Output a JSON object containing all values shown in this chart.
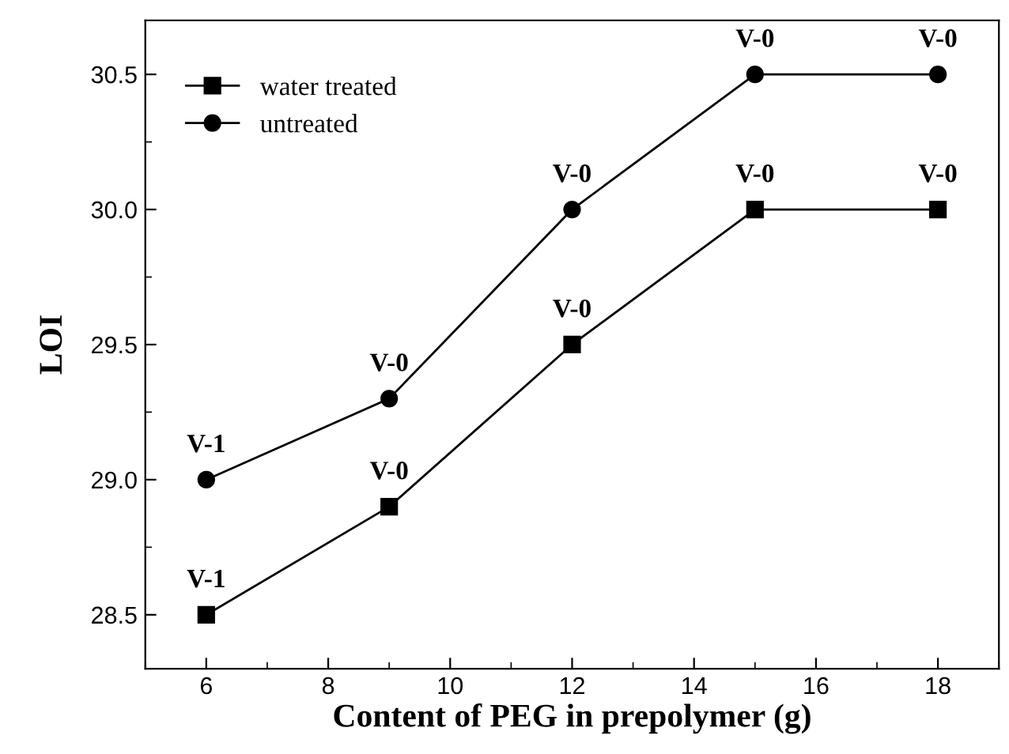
{
  "chart_data": {
    "type": "line",
    "xlabel": "Content of PEG in prepolymer (g)",
    "ylabel": "LOI",
    "x": [
      6,
      9,
      12,
      15,
      18
    ],
    "series": [
      {
        "name": "water treated",
        "color": "#000000",
        "marker": "square",
        "values": [
          28.5,
          28.9,
          29.5,
          30.0,
          30.0
        ],
        "value_labels": [
          "V-1",
          "V-0",
          "V-0",
          "V-0",
          "V-0"
        ]
      },
      {
        "name": "untreated",
        "color": "#000000",
        "marker": "circle",
        "values": [
          29.0,
          29.3,
          30.0,
          30.5,
          30.5
        ],
        "value_labels": [
          "V-1",
          "V-0",
          "V-0",
          "V-0",
          "V-0"
        ]
      }
    ],
    "xlim": [
      5,
      19
    ],
    "xticks": [
      6,
      8,
      10,
      12,
      14,
      16,
      18
    ],
    "ylim": [
      28.3,
      30.7
    ],
    "yticks": [
      {
        "value": 28.5,
        "label": "28.5"
      },
      {
        "value": 29.0,
        "label": "29.0"
      },
      {
        "value": 29.5,
        "label": "29.5"
      },
      {
        "value": 30.0,
        "label": "30.0"
      },
      {
        "value": 30.5,
        "label": "30.5"
      }
    ],
    "legend": "top left",
    "grid": false,
    "line_style": "solid"
  }
}
